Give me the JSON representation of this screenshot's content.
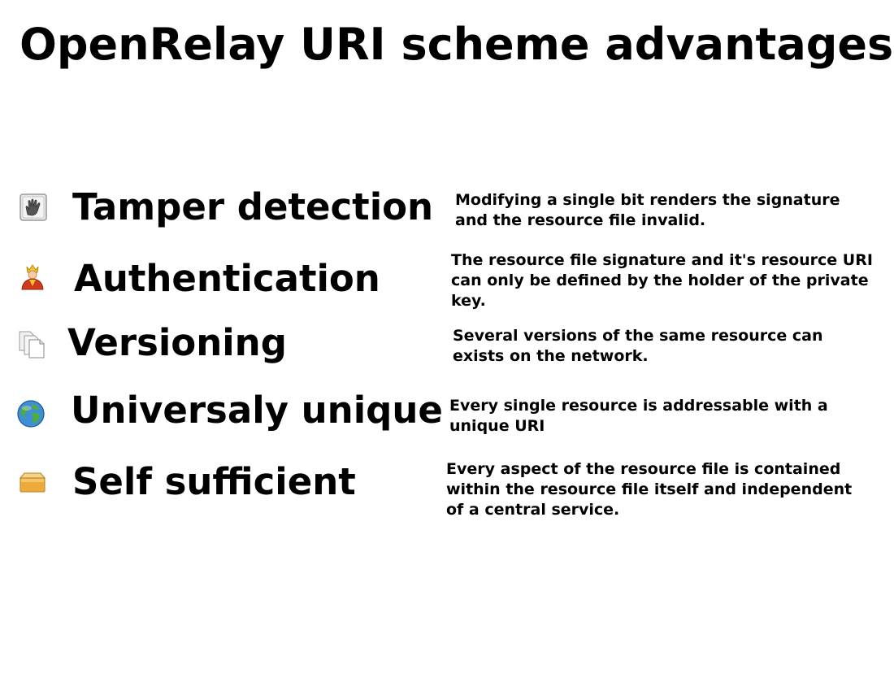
{
  "title": "OpenRelay URI scheme advantages",
  "features": [
    {
      "icon": "hand-icon",
      "label": "Tamper detection",
      "description": "Modifying a single bit renders the signature and the resource file invalid."
    },
    {
      "icon": "king-icon",
      "label": "Authentication",
      "description": "The resource file signature and it's resource URI can only be defined by the holder of the private key."
    },
    {
      "icon": "documents-icon",
      "label": "Versioning",
      "description": "Several versions of the same resource can exists on the network."
    },
    {
      "icon": "globe-icon",
      "label": "Universaly unique",
      "description": "Every single resource is addressable with a unique URI"
    },
    {
      "icon": "package-icon",
      "label": "Self sufficient",
      "description": "Every aspect of the resource file is contained within the resource file itself and independent of a central service."
    }
  ]
}
